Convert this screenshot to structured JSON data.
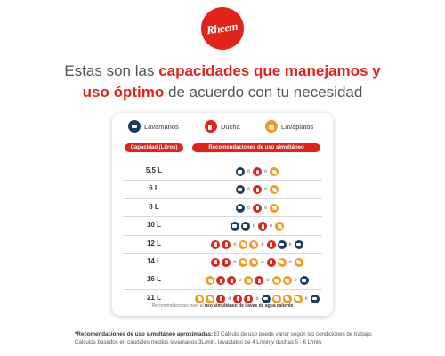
{
  "logo": {
    "text": "Rheem",
    "color": "#e2231a"
  },
  "headline": {
    "part1": "Estas son las ",
    "highlight1": "capacidades que manejamos y",
    "highlight2": "uso óptimo",
    "part2": " de acuerdo con tu necesidad"
  },
  "legend": [
    {
      "label": "Lavamanos",
      "icon": "sink-icon",
      "color": "#1c3d5a"
    },
    {
      "label": "Ducha",
      "icon": "shower-icon",
      "color": "#e2231a"
    },
    {
      "label": "Lavaplatos",
      "icon": "dishwasher-icon",
      "color": "#f39a1e"
    }
  ],
  "table": {
    "header_capacity": "Capacidad (Litros)",
    "header_recommendations": "Recomendaciones de uso simultáneo",
    "separator": "ó",
    "rows": [
      {
        "capacity": "5.5 L",
        "groups": [
          [
            "lav"
          ],
          [
            "duc"
          ],
          [
            "pla"
          ]
        ]
      },
      {
        "capacity": "6 L",
        "groups": [
          [
            "lav"
          ],
          [
            "duc"
          ],
          [
            "pla"
          ]
        ]
      },
      {
        "capacity": "8 L",
        "groups": [
          [
            "lav"
          ],
          [
            "duc"
          ],
          [
            "pla"
          ]
        ]
      },
      {
        "capacity": "10 L",
        "groups": [
          [
            "lav",
            "lav"
          ],
          [
            "duc"
          ],
          [
            "pla"
          ]
        ]
      },
      {
        "capacity": "12 L",
        "groups": [
          [
            "duc",
            "duc"
          ],
          [
            "pla",
            "pla"
          ],
          [
            "duc",
            "lav"
          ],
          [
            "lav"
          ]
        ]
      },
      {
        "capacity": "14 L",
        "groups": [
          [
            "duc",
            "duc"
          ],
          [
            "pla",
            "pla"
          ],
          [
            "duc",
            "pla"
          ],
          [
            "pla"
          ]
        ]
      },
      {
        "capacity": "16 L",
        "groups": [
          [
            "pla",
            "duc",
            "duc"
          ],
          [
            "pla",
            "duc"
          ],
          [
            "pla",
            "pla"
          ],
          [
            "lav"
          ]
        ]
      },
      {
        "capacity": "21 L",
        "groups": [
          [
            "pla",
            "pla",
            "duc"
          ],
          [
            "duc",
            "duc"
          ],
          [
            "lav",
            "pla",
            "pla",
            "pla"
          ],
          [
            "lav"
          ]
        ]
      }
    ]
  },
  "card_note": {
    "prefix": "Recomendaciones para el ",
    "bold": "uso simultáneo de llaves de agua caliente"
  },
  "footnote": {
    "bold": "*Recomendaciones de uso simultáneo aproximadas:",
    "text": " El Cálculo de uso puede variar según las condiciones de trabajo. Cálculos basados en caudales medios lavamanos 3L/min, lavaplatos de 4 L/min y duchas 5 - 6 L/min."
  }
}
